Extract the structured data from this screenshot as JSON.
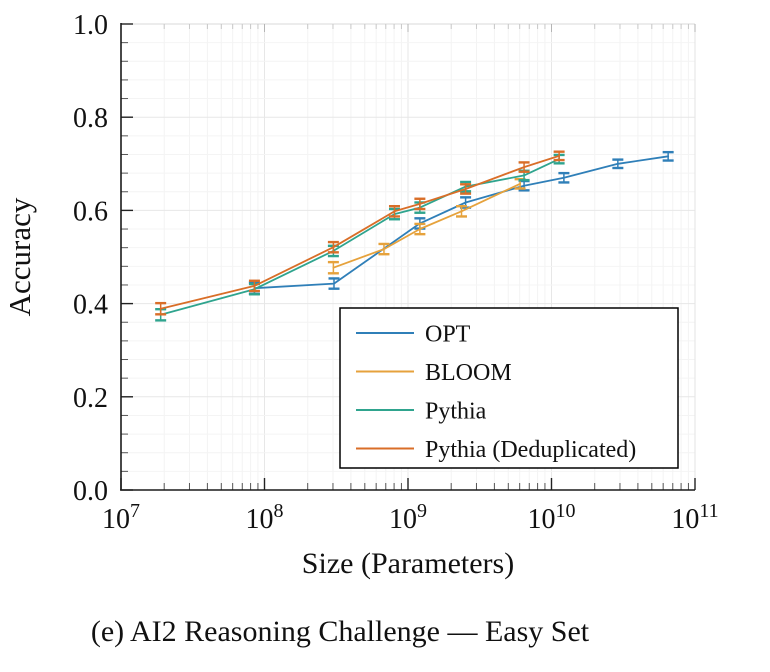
{
  "figure": {
    "caption": "(e) AI2 Reasoning Challenge — Easy Set"
  },
  "chart_data": {
    "type": "line",
    "title": "",
    "xlabel": "Size (Parameters)",
    "ylabel": "Accuracy",
    "x_scale": "log",
    "xlim": [
      10000000,
      100000000000
    ],
    "ylim": [
      0.0,
      1.0
    ],
    "y_major_tick_step": 0.2,
    "y_minor_tick_step": 0.04,
    "y_tick_labels": [
      "0.0",
      "0.2",
      "0.4",
      "0.6",
      "0.8",
      "1.0"
    ],
    "x_tick_exponents": [
      7,
      8,
      9,
      10,
      11
    ],
    "grid": true,
    "error_bars": true,
    "legend": {
      "position": "lower-right-inside",
      "entries": [
        "OPT",
        "BLOOM",
        "Pythia",
        "Pythia (Deduplicated)"
      ]
    },
    "series": [
      {
        "name": "OPT",
        "color": "#2f7fb8",
        "points": [
          [
            85000000,
            0.433,
            0.012
          ],
          [
            305000000,
            0.443,
            0.011
          ],
          [
            1210000000,
            0.572,
            0.011
          ],
          [
            2520000000,
            0.617,
            0.011
          ],
          [
            6440000000,
            0.653,
            0.01
          ],
          [
            12200000000,
            0.67,
            0.01
          ],
          [
            29000000000,
            0.7,
            0.009
          ],
          [
            65000000000,
            0.716,
            0.009
          ]
        ]
      },
      {
        "name": "BLOOM",
        "color": "#e6a23c",
        "points": [
          [
            302000000,
            0.477,
            0.012
          ],
          [
            680000000,
            0.517,
            0.011
          ],
          [
            1210000000,
            0.56,
            0.011
          ],
          [
            2360000000,
            0.598,
            0.011
          ],
          [
            6040000000,
            0.657,
            0.01
          ]
        ]
      },
      {
        "name": "Pythia",
        "color": "#2fa48e",
        "points": [
          [
            18900000,
            0.376,
            0.012
          ],
          [
            85100000,
            0.431,
            0.011
          ],
          [
            302000000,
            0.513,
            0.011
          ],
          [
            805000000,
            0.592,
            0.011
          ],
          [
            1210000000,
            0.606,
            0.011
          ],
          [
            2520000000,
            0.651,
            0.01
          ],
          [
            6440000000,
            0.675,
            0.01
          ],
          [
            11300000000,
            0.71,
            0.009
          ]
        ]
      },
      {
        "name": "Pythia (Deduplicated)",
        "color": "#d96e28",
        "points": [
          [
            18900000,
            0.389,
            0.012
          ],
          [
            85100000,
            0.438,
            0.011
          ],
          [
            302000000,
            0.521,
            0.011
          ],
          [
            805000000,
            0.598,
            0.011
          ],
          [
            1210000000,
            0.614,
            0.011
          ],
          [
            2520000000,
            0.646,
            0.01
          ],
          [
            6440000000,
            0.693,
            0.01
          ],
          [
            11300000000,
            0.717,
            0.009
          ]
        ]
      }
    ]
  }
}
